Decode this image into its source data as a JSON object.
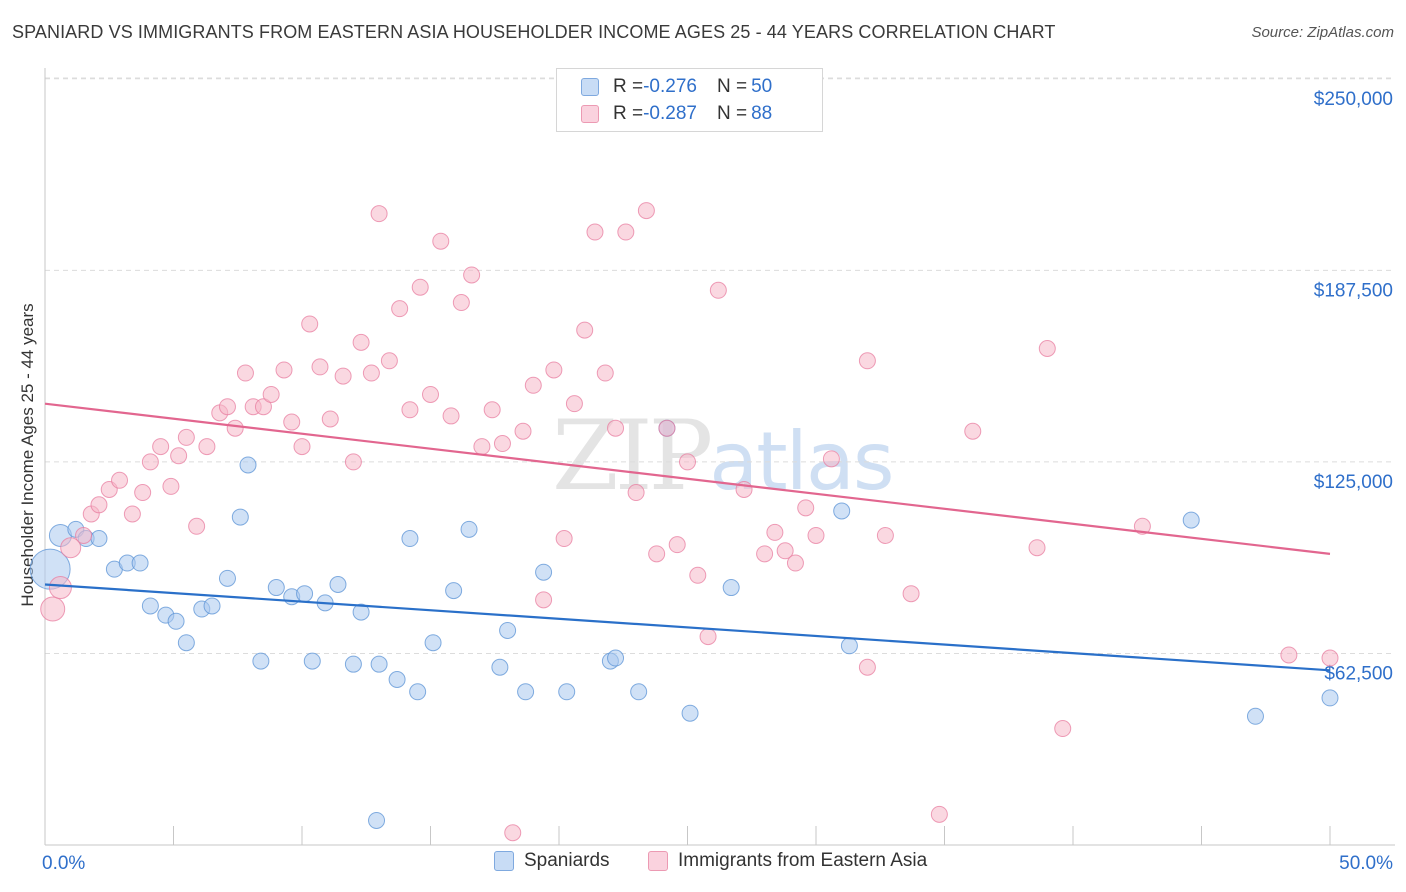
{
  "title": "SPANIARD VS IMMIGRANTS FROM EASTERN ASIA HOUSEHOLDER INCOME AGES 25 - 44 YEARS CORRELATION CHART",
  "source": "Source: ZipAtlas.com",
  "watermark": {
    "zip": "ZIP",
    "atlas": "atlas"
  },
  "legend": {
    "rows": [
      {
        "r_label": "R = ",
        "r_value": "-0.276",
        "n_label": "N = ",
        "n_value": "50",
        "color": "#a9c8ef"
      },
      {
        "r_label": "R = ",
        "r_value": "-0.287",
        "n_label": "N = ",
        "n_value": "88",
        "color": "#f5b8c9"
      }
    ]
  },
  "bottom_legend": [
    {
      "label": "Spaniards",
      "color": "#a9c8ef"
    },
    {
      "label": "Immigrants from Eastern Asia",
      "color": "#f5b8c9"
    }
  ],
  "chart_data": {
    "type": "scatter",
    "title": "SPANIARD VS IMMIGRANTS FROM EASTERN ASIA HOUSEHOLDER INCOME AGES 25 - 44 YEARS CORRELATION CHART",
    "xlabel": "",
    "ylabel": "Householder Income Ages 25 - 44 years",
    "xlim": [
      0,
      50
    ],
    "ylim": [
      0,
      250000
    ],
    "x_tick_labels": [
      "0.0%",
      "50.0%"
    ],
    "y_ticks": [
      62500,
      125000,
      187500,
      250000
    ],
    "y_tick_labels": [
      "$62,500",
      "$125,000",
      "$187,500",
      "$250,000"
    ],
    "grid": true,
    "legend_position": "top-center",
    "series": [
      {
        "name": "Spaniards",
        "color": "#5b93d6",
        "fill": "#a9c8ef",
        "trend": [
          [
            0,
            85000
          ],
          [
            50,
            57000
          ]
        ],
        "points": [
          [
            0.2,
            90000,
            20
          ],
          [
            0.6,
            101000,
            11
          ],
          [
            1.2,
            103000,
            8
          ],
          [
            1.6,
            100000,
            8
          ],
          [
            2.1,
            100000,
            8
          ],
          [
            2.7,
            90000,
            8
          ],
          [
            3.2,
            92000,
            8
          ],
          [
            3.7,
            92000,
            8
          ],
          [
            4.1,
            78000,
            8
          ],
          [
            4.7,
            75000,
            8
          ],
          [
            5.1,
            73000,
            8
          ],
          [
            5.5,
            66000,
            8
          ],
          [
            6.1,
            77000,
            8
          ],
          [
            6.5,
            78000,
            8
          ],
          [
            7.1,
            87000,
            8
          ],
          [
            7.6,
            107000,
            8
          ],
          [
            7.9,
            124000,
            8
          ],
          [
            8.4,
            60000,
            8
          ],
          [
            9.0,
            84000,
            8
          ],
          [
            9.6,
            81000,
            8
          ],
          [
            10.1,
            82000,
            8
          ],
          [
            10.4,
            60000,
            8
          ],
          [
            10.9,
            79000,
            8
          ],
          [
            11.4,
            85000,
            8
          ],
          [
            12.0,
            59000,
            8
          ],
          [
            12.3,
            76000,
            8
          ],
          [
            12.9,
            8000,
            8
          ],
          [
            13.0,
            59000,
            8
          ],
          [
            13.7,
            54000,
            8
          ],
          [
            14.2,
            100000,
            8
          ],
          [
            14.5,
            50000,
            8
          ],
          [
            15.1,
            66000,
            8
          ],
          [
            15.9,
            83000,
            8
          ],
          [
            16.5,
            103000,
            8
          ],
          [
            17.7,
            58000,
            8
          ],
          [
            18.0,
            70000,
            8
          ],
          [
            18.7,
            50000,
            8
          ],
          [
            19.4,
            89000,
            8
          ],
          [
            20.3,
            50000,
            8
          ],
          [
            22.0,
            60000,
            8
          ],
          [
            22.2,
            61000,
            8
          ],
          [
            23.1,
            50000,
            8
          ],
          [
            24.2,
            136000,
            8
          ],
          [
            25.1,
            43000,
            8
          ],
          [
            26.7,
            84000,
            8
          ],
          [
            31.0,
            109000,
            8
          ],
          [
            31.3,
            65000,
            8
          ],
          [
            44.6,
            106000,
            8
          ],
          [
            47.1,
            42000,
            8
          ],
          [
            50.0,
            48000,
            8
          ]
        ]
      },
      {
        "name": "Immigrants from Eastern Asia",
        "color": "#e87ea0",
        "fill": "#f5b8c9",
        "trend": [
          [
            0,
            144000
          ],
          [
            50,
            95000
          ]
        ],
        "points": [
          [
            0.3,
            77000,
            12
          ],
          [
            0.6,
            84000,
            11
          ],
          [
            1.0,
            97000,
            10
          ],
          [
            1.5,
            101000,
            8
          ],
          [
            1.8,
            108000,
            8
          ],
          [
            2.1,
            111000,
            8
          ],
          [
            2.5,
            116000,
            8
          ],
          [
            2.9,
            119000,
            8
          ],
          [
            3.4,
            108000,
            8
          ],
          [
            3.8,
            115000,
            8
          ],
          [
            4.1,
            125000,
            8
          ],
          [
            4.5,
            130000,
            8
          ],
          [
            4.9,
            117000,
            8
          ],
          [
            5.2,
            127000,
            8
          ],
          [
            5.5,
            133000,
            8
          ],
          [
            5.9,
            104000,
            8
          ],
          [
            6.3,
            130000,
            8
          ],
          [
            6.8,
            141000,
            8
          ],
          [
            7.1,
            143000,
            8
          ],
          [
            7.4,
            136000,
            8
          ],
          [
            7.8,
            154000,
            8
          ],
          [
            8.1,
            143000,
            8
          ],
          [
            8.5,
            143000,
            8
          ],
          [
            8.8,
            147000,
            8
          ],
          [
            9.3,
            155000,
            8
          ],
          [
            9.6,
            138000,
            8
          ],
          [
            10.0,
            130000,
            8
          ],
          [
            10.3,
            170000,
            8
          ],
          [
            10.7,
            156000,
            8
          ],
          [
            11.1,
            139000,
            8
          ],
          [
            11.6,
            153000,
            8
          ],
          [
            12.0,
            125000,
            8
          ],
          [
            12.3,
            164000,
            8
          ],
          [
            12.7,
            154000,
            8
          ],
          [
            13.0,
            206000,
            8
          ],
          [
            13.4,
            158000,
            8
          ],
          [
            13.8,
            175000,
            8
          ],
          [
            14.2,
            142000,
            8
          ],
          [
            14.6,
            182000,
            8
          ],
          [
            15.0,
            147000,
            8
          ],
          [
            15.4,
            197000,
            8
          ],
          [
            15.8,
            140000,
            8
          ],
          [
            16.2,
            177000,
            8
          ],
          [
            16.6,
            186000,
            8
          ],
          [
            17.0,
            130000,
            8
          ],
          [
            17.4,
            142000,
            8
          ],
          [
            17.8,
            131000,
            8
          ],
          [
            18.2,
            4000,
            8
          ],
          [
            18.6,
            135000,
            8
          ],
          [
            19.0,
            150000,
            8
          ],
          [
            19.4,
            80000,
            8
          ],
          [
            19.8,
            155000,
            8
          ],
          [
            20.2,
            100000,
            8
          ],
          [
            20.6,
            144000,
            8
          ],
          [
            21.0,
            168000,
            8
          ],
          [
            21.4,
            200000,
            8
          ],
          [
            21.8,
            154000,
            8
          ],
          [
            22.2,
            136000,
            8
          ],
          [
            22.6,
            200000,
            8
          ],
          [
            23.0,
            115000,
            8
          ],
          [
            23.4,
            207000,
            8
          ],
          [
            23.8,
            95000,
            8
          ],
          [
            24.2,
            136000,
            8
          ],
          [
            24.6,
            98000,
            8
          ],
          [
            25.0,
            125000,
            8
          ],
          [
            25.4,
            88000,
            8
          ],
          [
            25.8,
            68000,
            8
          ],
          [
            26.2,
            181000,
            8
          ],
          [
            27.2,
            116000,
            8
          ],
          [
            28.0,
            95000,
            8
          ],
          [
            28.4,
            102000,
            8
          ],
          [
            28.8,
            96000,
            8
          ],
          [
            29.2,
            92000,
            8
          ],
          [
            29.6,
            110000,
            8
          ],
          [
            30.0,
            101000,
            8
          ],
          [
            30.6,
            126000,
            8
          ],
          [
            32.0,
            58000,
            8
          ],
          [
            32.0,
            158000,
            8
          ],
          [
            32.7,
            101000,
            8
          ],
          [
            33.7,
            82000,
            8
          ],
          [
            34.8,
            10000,
            8
          ],
          [
            36.1,
            135000,
            8
          ],
          [
            38.6,
            97000,
            8
          ],
          [
            39.0,
            162000,
            8
          ],
          [
            39.6,
            38000,
            8
          ],
          [
            42.7,
            104000,
            8
          ],
          [
            48.4,
            62000,
            8
          ],
          [
            50.0,
            61000,
            8
          ]
        ]
      }
    ]
  }
}
